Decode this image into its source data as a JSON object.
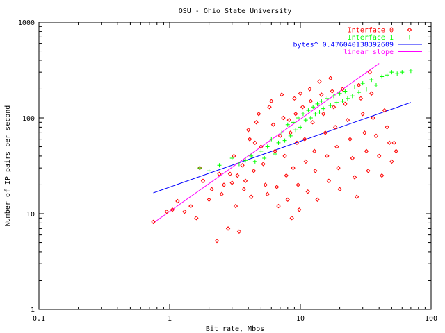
{
  "chart_data": {
    "type": "scatter",
    "title": "OSU - Ohio State University",
    "xlabel": "Bit rate, Mbps",
    "ylabel": "Number of IP pairs per second",
    "xscale": "log",
    "yscale": "log",
    "xlim": [
      0.1,
      100
    ],
    "ylim": [
      1,
      1000
    ],
    "xticks": [
      "0.1",
      "1",
      "10",
      "100"
    ],
    "yticks": [
      "1",
      "10",
      "100",
      "1000"
    ],
    "legend_position": "top-right",
    "grid": false,
    "series": [
      {
        "name": "Interface 0",
        "marker": "diamond",
        "color": "#ff0000",
        "points": [
          [
            0.75,
            8.2
          ],
          [
            0.95,
            10.5
          ],
          [
            1.05,
            11
          ],
          [
            1.15,
            13.5
          ],
          [
            1.3,
            10.5
          ],
          [
            1.45,
            12
          ],
          [
            1.6,
            9
          ],
          [
            1.7,
            30
          ],
          [
            1.8,
            22
          ],
          [
            2.0,
            14
          ],
          [
            2.1,
            18
          ],
          [
            2.3,
            5.2
          ],
          [
            2.4,
            26
          ],
          [
            2.5,
            16
          ],
          [
            2.6,
            20
          ],
          [
            2.8,
            7
          ],
          [
            2.9,
            26
          ],
          [
            3.0,
            21
          ],
          [
            3.1,
            40
          ],
          [
            3.2,
            12
          ],
          [
            3.3,
            25
          ],
          [
            3.4,
            6.5
          ],
          [
            3.6,
            32
          ],
          [
            3.7,
            18
          ],
          [
            3.8,
            22
          ],
          [
            4.0,
            75
          ],
          [
            4.1,
            60
          ],
          [
            4.2,
            15
          ],
          [
            4.4,
            28
          ],
          [
            4.5,
            55
          ],
          [
            4.6,
            90
          ],
          [
            4.8,
            110
          ],
          [
            5.0,
            50
          ],
          [
            5.2,
            33
          ],
          [
            5.4,
            20
          ],
          [
            5.6,
            16
          ],
          [
            5.8,
            130
          ],
          [
            6.0,
            150
          ],
          [
            6.2,
            85
          ],
          [
            6.4,
            45
          ],
          [
            6.6,
            19
          ],
          [
            6.8,
            12
          ],
          [
            7.0,
            65
          ],
          [
            7.2,
            175
          ],
          [
            7.4,
            100
          ],
          [
            7.6,
            40
          ],
          [
            7.8,
            25
          ],
          [
            8.0,
            14
          ],
          [
            8.2,
            95
          ],
          [
            8.4,
            70
          ],
          [
            8.6,
            9
          ],
          [
            8.8,
            30
          ],
          [
            9.0,
            160
          ],
          [
            9.2,
            110
          ],
          [
            9.4,
            55
          ],
          [
            9.6,
            20
          ],
          [
            9.8,
            11
          ],
          [
            10,
            180
          ],
          [
            10.4,
            130
          ],
          [
            10.8,
            60
          ],
          [
            11,
            35
          ],
          [
            11.4,
            17
          ],
          [
            11.8,
            200
          ],
          [
            12,
            150
          ],
          [
            12.4,
            90
          ],
          [
            12.8,
            45
          ],
          [
            13,
            28
          ],
          [
            13.5,
            14
          ],
          [
            14,
            240
          ],
          [
            14.5,
            175
          ],
          [
            15,
            110
          ],
          [
            15.5,
            70
          ],
          [
            16,
            40
          ],
          [
            16.5,
            22
          ],
          [
            17,
            260
          ],
          [
            17.5,
            190
          ],
          [
            18,
            130
          ],
          [
            18.5,
            80
          ],
          [
            19,
            50
          ],
          [
            19.5,
            30
          ],
          [
            20,
            18
          ],
          [
            21,
            200
          ],
          [
            22,
            140
          ],
          [
            23,
            95
          ],
          [
            24,
            60
          ],
          [
            25,
            38
          ],
          [
            26,
            24
          ],
          [
            27,
            15
          ],
          [
            28,
            220
          ],
          [
            29,
            160
          ],
          [
            30,
            110
          ],
          [
            31,
            70
          ],
          [
            32,
            45
          ],
          [
            33,
            28
          ],
          [
            34,
            300
          ],
          [
            35,
            180
          ],
          [
            36,
            100
          ],
          [
            38,
            65
          ],
          [
            40,
            40
          ],
          [
            42,
            25
          ],
          [
            44,
            120
          ],
          [
            46,
            80
          ],
          [
            48,
            55
          ],
          [
            50,
            35
          ],
          [
            52,
            55
          ],
          [
            54,
            45
          ]
        ]
      },
      {
        "name": "Interface 1",
        "marker": "plus",
        "color": "#00ff00",
        "points": [
          [
            1.7,
            30
          ],
          [
            2.0,
            28
          ],
          [
            2.4,
            32
          ],
          [
            3.0,
            38
          ],
          [
            3.4,
            33
          ],
          [
            3.8,
            36
          ],
          [
            4.2,
            40
          ],
          [
            4.5,
            35
          ],
          [
            5.0,
            45
          ],
          [
            5.3,
            38
          ],
          [
            5.6,
            50
          ],
          [
            6.0,
            60
          ],
          [
            6.4,
            42
          ],
          [
            6.8,
            55
          ],
          [
            7.2,
            70
          ],
          [
            7.6,
            58
          ],
          [
            8.0,
            85
          ],
          [
            8.4,
            65
          ],
          [
            8.8,
            90
          ],
          [
            9.2,
            75
          ],
          [
            9.6,
            100
          ],
          [
            10,
            80
          ],
          [
            10.5,
            110
          ],
          [
            11,
            95
          ],
          [
            11.5,
            120
          ],
          [
            12,
            100
          ],
          [
            12.5,
            130
          ],
          [
            13,
            110
          ],
          [
            13.5,
            140
          ],
          [
            14,
            115
          ],
          [
            14.5,
            150
          ],
          [
            15,
            125
          ],
          [
            16,
            160
          ],
          [
            17,
            135
          ],
          [
            18,
            170
          ],
          [
            19,
            145
          ],
          [
            20,
            180
          ],
          [
            21,
            150
          ],
          [
            22,
            190
          ],
          [
            23,
            160
          ],
          [
            24,
            200
          ],
          [
            25,
            170
          ],
          [
            26,
            210
          ],
          [
            28,
            185
          ],
          [
            30,
            230
          ],
          [
            32,
            200
          ],
          [
            35,
            250
          ],
          [
            38,
            220
          ],
          [
            42,
            270
          ],
          [
            46,
            280
          ],
          [
            50,
            300
          ],
          [
            55,
            290
          ],
          [
            60,
            300
          ],
          [
            70,
            310
          ]
        ]
      }
    ],
    "lines": [
      {
        "name": "bytes^ 0.476040138392609",
        "color": "#0000ff",
        "x": [
          0.75,
          70
        ],
        "y": [
          16.5,
          145
        ]
      },
      {
        "name": "linear slope",
        "color": "#ff00ff",
        "x": [
          0.75,
          40
        ],
        "y": [
          8.0,
          370
        ]
      }
    ]
  }
}
